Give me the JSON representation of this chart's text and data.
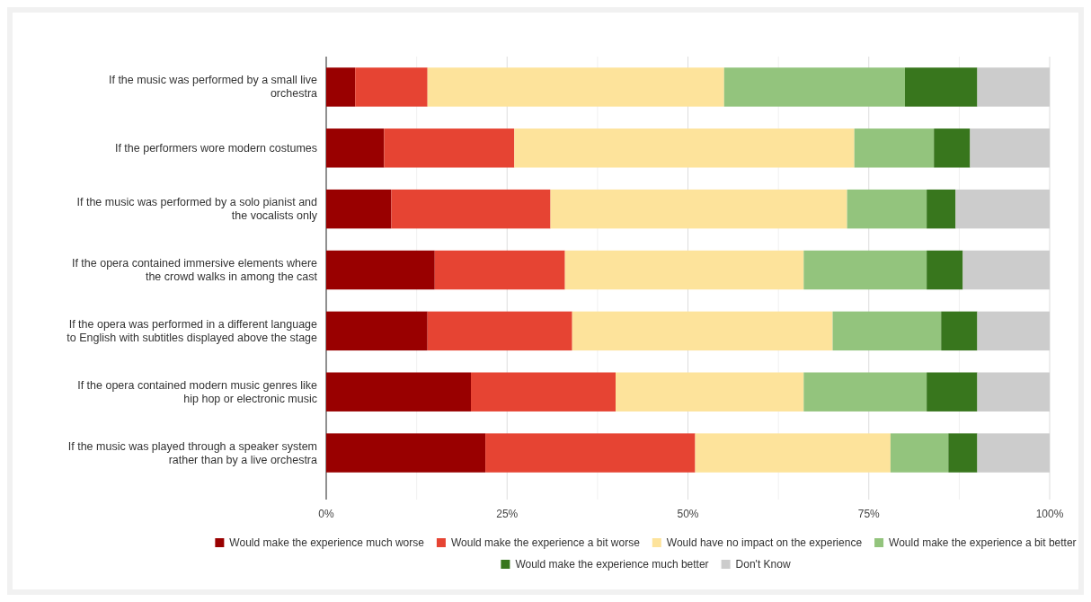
{
  "chart_data": {
    "type": "bar",
    "orientation": "horizontal",
    "stacked": true,
    "categories": [
      "If the music was performed by a small live orchestra",
      "If the performers wore modern costumes",
      "If the music was performed by a solo pianist and the vocalists only",
      "If the opera contained immersive elements where the crowd walks in among the cast",
      "If the opera was performed in a different language to English with subtitles displayed above the stage",
      "If the opera contained modern music genres like hip hop or electronic music",
      "If the music was played through a speaker system rather than by a live orchestra"
    ],
    "series": [
      {
        "name": "Would make the experience much worse",
        "color": "#990000",
        "values": [
          4,
          8,
          9,
          15,
          14,
          20,
          22
        ]
      },
      {
        "name": "Would make the experience a bit worse",
        "color": "#e64433",
        "values": [
          10,
          18,
          22,
          18,
          20,
          20,
          29
        ]
      },
      {
        "name": "Would have no impact on the experience",
        "color": "#fde39b",
        "values": [
          41,
          47,
          41,
          33,
          36,
          26,
          27
        ]
      },
      {
        "name": "Would make the experience a bit better",
        "color": "#93c47d",
        "values": [
          25,
          11,
          11,
          17,
          15,
          17,
          8
        ]
      },
      {
        "name": "Would make the experience much better",
        "color": "#38761d",
        "values": [
          10,
          5,
          4,
          5,
          5,
          7,
          4
        ]
      },
      {
        "name": "Don't Know",
        "color": "#cccccc",
        "values": [
          10,
          11,
          13,
          12,
          10,
          10,
          10
        ]
      }
    ],
    "xlim": [
      0,
      100
    ],
    "xticks": [
      {
        "value": 0,
        "label": "0%"
      },
      {
        "value": 12.5,
        "label": null
      },
      {
        "value": 25,
        "label": "25%"
      },
      {
        "value": 37.5,
        "label": null
      },
      {
        "value": 50,
        "label": "50%"
      },
      {
        "value": 62.5,
        "label": null
      },
      {
        "value": 75,
        "label": "75%"
      },
      {
        "value": 87.5,
        "label": null
      },
      {
        "value": 100,
        "label": "100%"
      }
    ],
    "grid": "x",
    "legend": "bottom"
  }
}
